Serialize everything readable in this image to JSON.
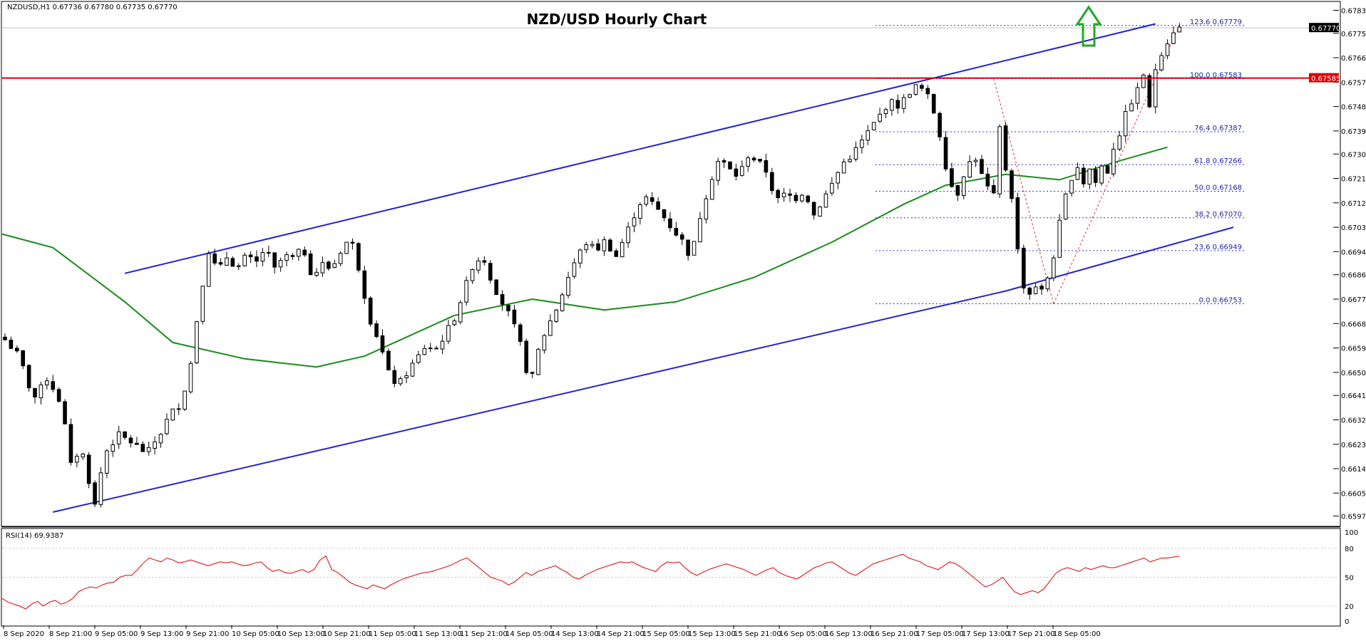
{
  "header": {
    "symbol_info": "NZDUSD,H1  0.67736 0.67780 0.67735 0.67770",
    "title": "NZD/USD Hourly Chart"
  },
  "rsi_panel": {
    "label": "RSI(14) 69.9387"
  },
  "colors": {
    "candle": "#000000",
    "channel": "#2222cc",
    "resistance": "#dd0000",
    "moving_average": "#1a8c1a",
    "fib": "#3333cc",
    "rsi": "#dd0000",
    "arrow": "#22aa22"
  },
  "chart_data": [
    {
      "type": "candlestick",
      "title": "NZD/USD Hourly Chart",
      "ylim": [
        0.65935,
        0.67865
      ],
      "y_ticks": [
        "0.67835",
        "0.67750",
        "0.67660",
        "0.67570",
        "0.67480",
        "0.67390",
        "0.67305",
        "0.67215",
        "0.67125",
        "0.67035",
        "0.66945",
        "0.66860",
        "0.66770",
        "0.66680",
        "0.66590",
        "0.66500",
        "0.66415",
        "0.66325",
        "0.66235",
        "0.66145",
        "0.66055",
        "0.65970"
      ],
      "x_ticks": [
        "8 Sep 2020",
        "8 Sep 21:00",
        "9 Sep 05:00",
        "9 Sep 13:00",
        "9 Sep 21:00",
        "10 Sep 05:00",
        "10 Sep 13:00",
        "10 Sep 21:00",
        "11 Sep 05:00",
        "11 Sep 13:00",
        "11 Sep 21:00",
        "14 Sep 05:00",
        "14 Sep 13:00",
        "14 Sep 21:00",
        "15 Sep 05:00",
        "15 Sep 13:00",
        "15 Sep 21:00",
        "16 Sep 05:00",
        "16 Sep 13:00",
        "16 Sep 21:00",
        "17 Sep 05:00",
        "17 Sep 13:00",
        "17 Sep 21:00",
        "18 Sep 05:00"
      ],
      "current_price": "0.67770",
      "resistance": {
        "value": 0.67585,
        "label": "0.67585"
      },
      "fib_levels": [
        {
          "label": "123.6 0.67779",
          "value": 0.67779
        },
        {
          "label": "100.0 0.67583",
          "value": 0.67583
        },
        {
          "label": "76.4 0.67387",
          "value": 0.67387
        },
        {
          "label": "61.8 0.67266",
          "value": 0.67266
        },
        {
          "label": "50.0 0.67168",
          "value": 0.67168
        },
        {
          "label": "38.2 0.67070",
          "value": 0.6707
        },
        {
          "label": "23.6 0.66949",
          "value": 0.66949
        },
        {
          "label": "0.0 0.66753",
          "value": 0.66753
        }
      ],
      "channel": {
        "upper": [
          [
            20,
            0.66865
          ],
          [
            155,
            0.67585
          ],
          [
            192,
            0.67785
          ]
        ],
        "lower": [
          [
            8,
            0.65985
          ],
          [
            167,
            0.668
          ],
          [
            205,
            0.67035
          ]
        ]
      },
      "ma_label": "",
      "ma": [
        [
          0,
          0.6701
        ],
        [
          8,
          0.6696
        ],
        [
          20,
          0.6676
        ],
        [
          28,
          0.6661
        ],
        [
          40,
          0.6655
        ],
        [
          52,
          0.6652
        ],
        [
          60,
          0.6656
        ],
        [
          75,
          0.6671
        ],
        [
          88,
          0.6677
        ],
        [
          100,
          0.6673
        ],
        [
          112,
          0.6676
        ],
        [
          125,
          0.6685
        ],
        [
          138,
          0.6698
        ],
        [
          150,
          0.6712
        ],
        [
          157,
          0.6719
        ],
        [
          167,
          0.6723
        ],
        [
          176,
          0.6721
        ],
        [
          186,
          0.6728
        ],
        [
          194,
          0.6733
        ]
      ],
      "ohlc": []
    },
    {
      "type": "line",
      "title": "RSI(14) 69.9387",
      "ylim": [
        0,
        100
      ],
      "y_ticks": [
        "100",
        "80",
        "50",
        "20",
        "0"
      ],
      "rsi": [
        28,
        24,
        22,
        20,
        17,
        22,
        25,
        20,
        24,
        26,
        22,
        24,
        28,
        35,
        38,
        40,
        39,
        42,
        44,
        45,
        50,
        52,
        52,
        58,
        65,
        70,
        68,
        66,
        70,
        68,
        65,
        66,
        68,
        66,
        64,
        62,
        64,
        66,
        65,
        66,
        64,
        62,
        63,
        65,
        66,
        60,
        56,
        58,
        55,
        54,
        56,
        58,
        55,
        58,
        68,
        72,
        58,
        55,
        50,
        45,
        42,
        40,
        38,
        42,
        40,
        38,
        42,
        45,
        48,
        50,
        52,
        54,
        55,
        56,
        58,
        60,
        62,
        65,
        68,
        70,
        65,
        60,
        55,
        50,
        48,
        46,
        42,
        45,
        50,
        55,
        52,
        56,
        58,
        60,
        62,
        58,
        55,
        50,
        48,
        52,
        55,
        58,
        60,
        62,
        64,
        66,
        65,
        66,
        63,
        60,
        58,
        56,
        62,
        66,
        65,
        66,
        60,
        55,
        52,
        55,
        58,
        60,
        62,
        64,
        62,
        60,
        58,
        55,
        52,
        55,
        58,
        60,
        55,
        52,
        50,
        48,
        52,
        56,
        60,
        62,
        65,
        66,
        62,
        58,
        54,
        52,
        56,
        60,
        64,
        66,
        68,
        70,
        72,
        74,
        70,
        68,
        66,
        62,
        60,
        58,
        62,
        66,
        64,
        60,
        55,
        50,
        45,
        40,
        42,
        46,
        50,
        42,
        35,
        32,
        34,
        36,
        34,
        38,
        46,
        54,
        58,
        60,
        58,
        56,
        60,
        58,
        60,
        62,
        60,
        60,
        62,
        64,
        66,
        68,
        70,
        66,
        68,
        70,
        70,
        71,
        72
      ]
    }
  ]
}
